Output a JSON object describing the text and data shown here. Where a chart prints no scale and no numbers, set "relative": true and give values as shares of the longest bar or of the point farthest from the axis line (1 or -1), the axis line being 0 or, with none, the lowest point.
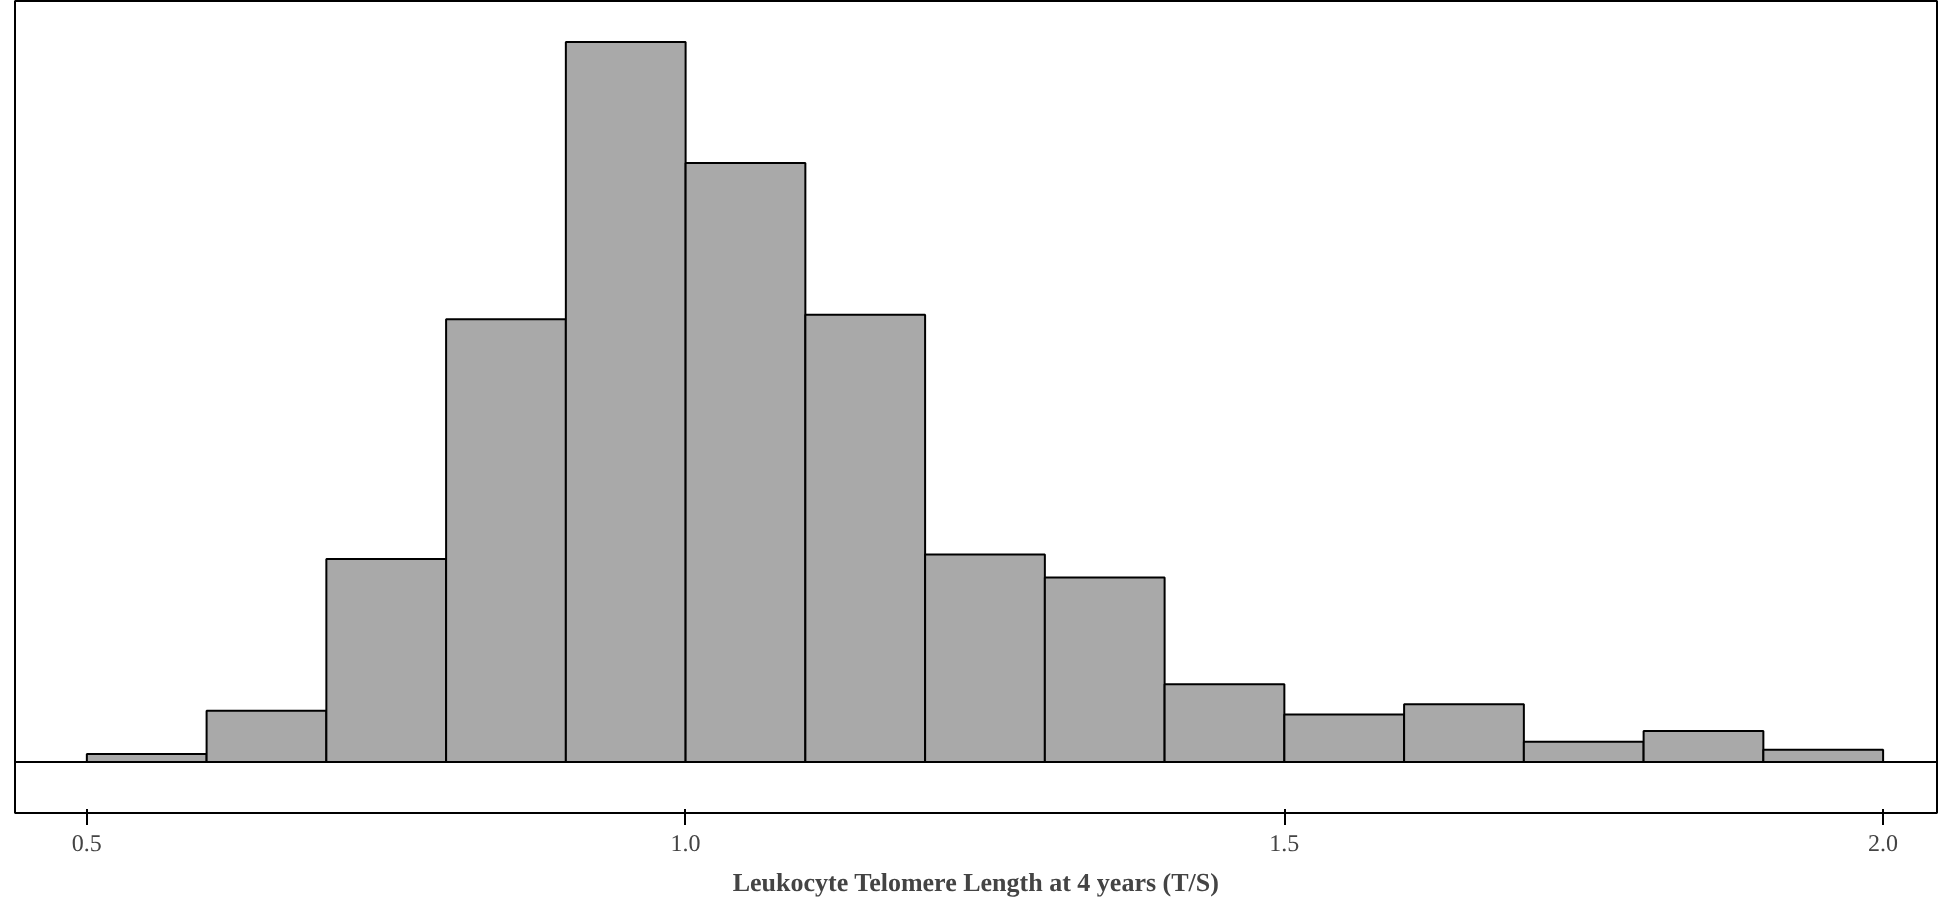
{
  "chart_data": {
    "type": "bar",
    "relative": true,
    "xlabel": "Leukocyte Telomere Length at 4 years (T/S)",
    "x": [
      0.55,
      0.65,
      0.75,
      0.85,
      0.95,
      1.05,
      1.15,
      1.25,
      1.35,
      1.45,
      1.55,
      1.65,
      1.75,
      1.85,
      1.95
    ],
    "values": [
      0.011,
      0.071,
      0.282,
      0.615,
      1,
      0.832,
      0.621,
      0.288,
      0.256,
      0.108,
      0.066,
      0.08,
      0.028,
      0.043,
      0.017
    ],
    "color": "#a9a9a9",
    "xlim": [
      0.44,
      2.045
    ],
    "xticks": [
      {
        "value": 0.5,
        "label": "0.5"
      },
      {
        "value": 1.0,
        "label": "1.0"
      },
      {
        "value": 1.5,
        "label": "1.5"
      },
      {
        "value": 2.0,
        "label": "2.0"
      }
    ],
    "grid": false
  }
}
